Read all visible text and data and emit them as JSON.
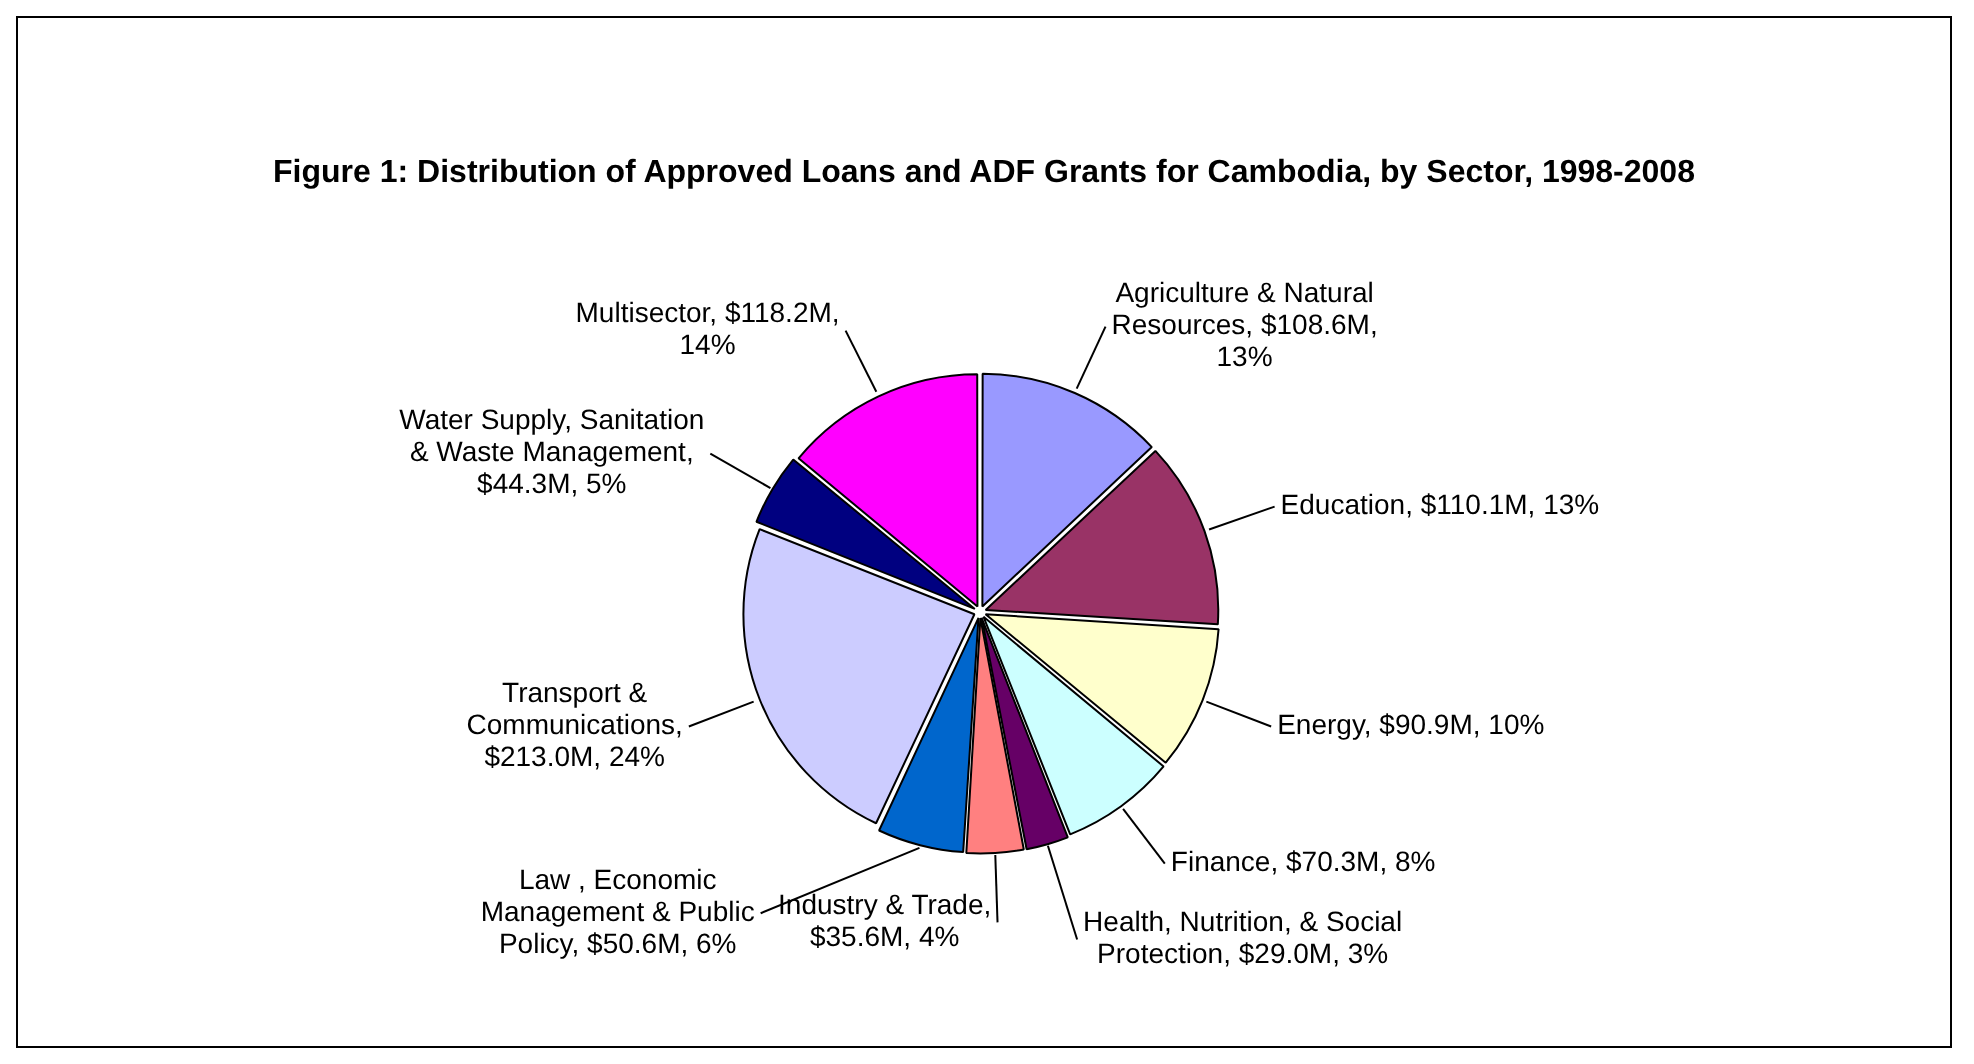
{
  "chart_data": {
    "type": "pie",
    "title": "Figure 1: Distribution of Approved Loans and ADF Grants for Cambodia, by Sector, 1998-2008",
    "categories": [
      "Agriculture & Natural Resources, $108.6M, 13%",
      "Education, $110.1M, 13%",
      "Energy, $90.9M, 10%",
      "Finance, $70.3M, 8%",
      "Health, Nutrition, & Social Protection, $29.0M, 3%",
      "Industry & Trade, $35.6M, 4%",
      "Law , Economic Management & Public Policy, $50.6M, 6%",
      "Transport & Communications, $213.0M, 24%",
      "Water Supply, Sanitation & Waste Management, $44.3M, 5%",
      "Multisector, $118.2M, 14%"
    ],
    "values": [
      13,
      13,
      10,
      8,
      3,
      4,
      6,
      24,
      5,
      14
    ],
    "colors": [
      "#9999ff",
      "#993366",
      "#ffffcc",
      "#ccffff",
      "#660066",
      "#ff8080",
      "#0066cc",
      "#ccccff",
      "#000080",
      "#ff00ff"
    ],
    "legend": false
  }
}
